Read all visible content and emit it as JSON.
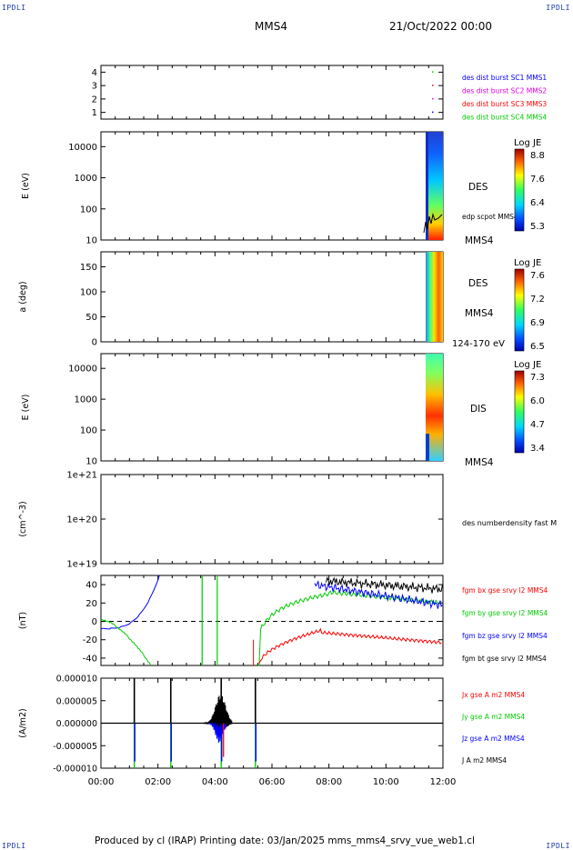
{
  "logo": "IPDLI",
  "header": {
    "title": "MMS4",
    "datetime": "21/Oct/2022 00:00"
  },
  "footer": "Produced by cl (IRAP)   Printing date: 03/Jan/2025   mms_mms4_srvy_vue_web1.cl",
  "colors": {
    "jx": "#ff0000",
    "jy": "#00cc00",
    "jz": "#0000ff",
    "jt": "#000000",
    "c1": "#0000ff",
    "c2": "#e000e0",
    "c3": "#ff0000",
    "c4": "#00cc00"
  },
  "x_ticks": [
    "00:00",
    "02:00",
    "04:00",
    "06:00",
    "08:00",
    "10:00",
    "12:00"
  ],
  "chart_data": [
    {
      "type": "scatter",
      "panel": "burst",
      "yticks": [
        "1",
        "2",
        "3",
        "4"
      ],
      "ylim": [
        0.5,
        4.5
      ],
      "legend": [
        "des dist burst SC1 MMS1",
        "des dist burst SC2 MMS2",
        "des dist burst SC3 MMS3",
        "des dist burst SC4 MMS4"
      ]
    },
    {
      "type": "heatmap",
      "panel": "des-energy",
      "ylabel": "E (eV)",
      "yticks": [
        "10",
        "100",
        "1000",
        "10000"
      ],
      "ylim": [
        10,
        30000
      ],
      "yscale": "log",
      "side_label": "DES",
      "side_label2": "edp scpot MMS4",
      "mms_label": "MMS4",
      "colorbar": {
        "title": "Log JE",
        "ticks": [
          "8.8",
          "7.6",
          "6.4",
          "5.3"
        ]
      }
    },
    {
      "type": "heatmap",
      "panel": "des-pitch",
      "ylabel": "a (deg)",
      "yticks": [
        "0",
        "50",
        "100",
        "150"
      ],
      "ylim": [
        0,
        180
      ],
      "side_label": "DES",
      "mms_label": "MMS4",
      "energy_range": "124-170 eV",
      "colorbar": {
        "title": "Log JE",
        "ticks": [
          "7.6",
          "7.2",
          "6.9",
          "6.5"
        ]
      }
    },
    {
      "type": "heatmap",
      "panel": "dis-energy",
      "ylabel": "E (eV)",
      "yticks": [
        "10",
        "100",
        "1000",
        "10000"
      ],
      "ylim": [
        10,
        30000
      ],
      "yscale": "log",
      "side_label": "DIS",
      "mms_label": "MMS4",
      "colorbar": {
        "title": "Log JE",
        "ticks": [
          "7.3",
          "6.0",
          "4.7",
          "3.4"
        ]
      }
    },
    {
      "type": "line",
      "panel": "density",
      "ylabel": "(cm^-3)",
      "yticks": [
        "1e+19",
        "1e+20",
        "1e+21"
      ],
      "yscale": "log",
      "legend": [
        "des numberdensity fast M"
      ]
    },
    {
      "type": "line",
      "panel": "fgm",
      "ylabel": "(nT)",
      "yticks": [
        "-40",
        "-20",
        "0",
        "20",
        "40"
      ],
      "ylim": [
        -48,
        50
      ],
      "legend": [
        "fgm bx gse srvy l2 MMS4",
        "fgm by gse srvy l2 MMS4",
        "fgm bz gse srvy l2 MMS4",
        "fgm bt gse srvy l2 MMS4"
      ]
    },
    {
      "type": "line",
      "panel": "current",
      "ylabel": "(A/m2)",
      "yticks": [
        "-0.000010",
        "-0.000005",
        "0.000000",
        "0.000005",
        "0.000010"
      ],
      "ylim": [
        -1e-05,
        1e-05
      ],
      "legend": [
        "Jx gse A m2 MMS4",
        "Jy gse A m2 MMS4",
        "Jz gse A m2 MMS4",
        "J A m2 MMS4"
      ],
      "spikes_hours": [
        1.17,
        2.45,
        4.22,
        5.42
      ]
    }
  ]
}
